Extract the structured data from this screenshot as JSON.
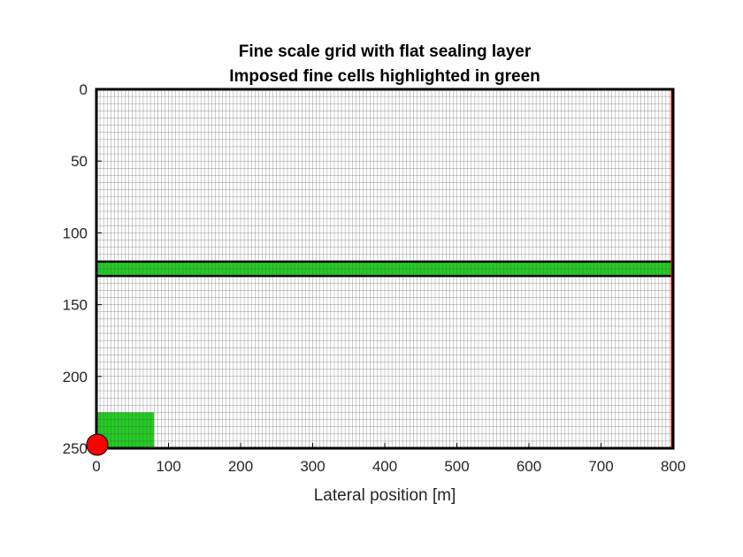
{
  "chart_data": {
    "type": "grid",
    "title": [
      "Fine scale grid with flat sealing layer",
      "Imposed fine cells highlighted in green"
    ],
    "xlabel": "Lateral position [m]",
    "ylabel": "",
    "xlim": [
      0,
      800
    ],
    "ylim": [
      0,
      250
    ],
    "y_reversed": true,
    "xticks": [
      0,
      100,
      200,
      300,
      400,
      500,
      600,
      700,
      800
    ],
    "yticks": [
      0,
      50,
      100,
      150,
      200,
      250
    ],
    "xtick_labels": [
      "0",
      "100",
      "200",
      "300",
      "400",
      "500",
      "600",
      "700",
      "800"
    ],
    "ytick_labels": [
      "0",
      "50",
      "100",
      "150",
      "200",
      "250"
    ],
    "grid_cells": {
      "nx": 160,
      "ny": 50,
      "dx": 5,
      "dy": 5
    },
    "highlighted_regions": [
      {
        "name": "sealing-layer",
        "x": [
          0,
          800
        ],
        "y": [
          120,
          130
        ],
        "color": "#22cc22"
      },
      {
        "name": "well-region",
        "x": [
          0,
          80
        ],
        "y": [
          225,
          250
        ],
        "color": "#22cc22"
      }
    ],
    "boundary_line": {
      "x": 800,
      "y": [
        0,
        250
      ],
      "color": "#ff0000"
    },
    "well_marker": {
      "x": 0,
      "y": 250,
      "color": "#ff0000"
    }
  }
}
